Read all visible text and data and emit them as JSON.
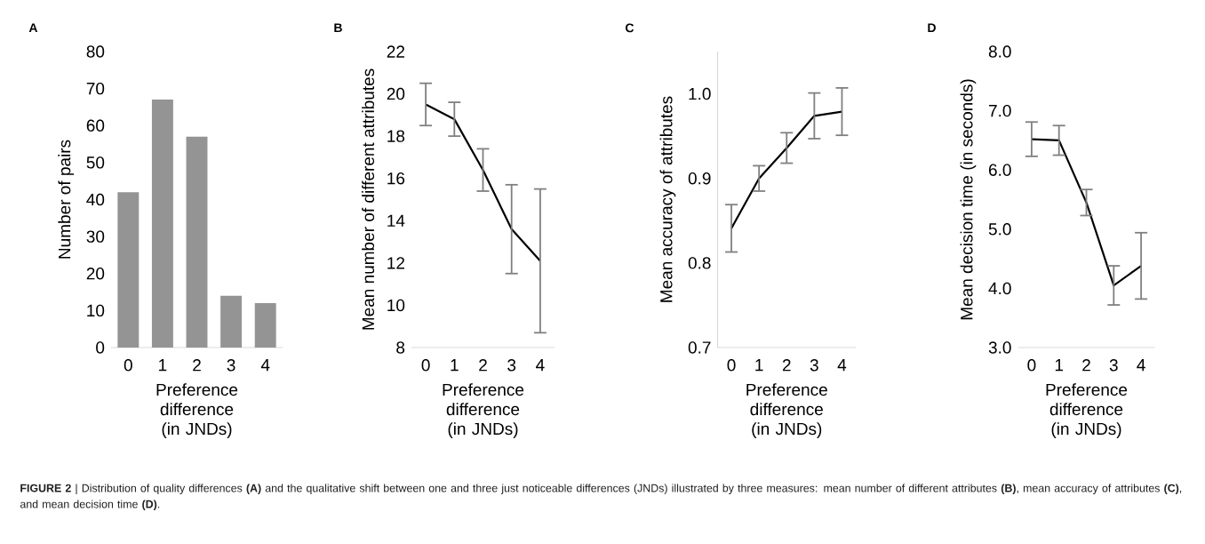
{
  "chart_data": [
    {
      "type": "bar",
      "title": "A",
      "xlabel": "Preference difference (in JNDs)",
      "ylabel": "Number of pairs",
      "categories": [
        "0",
        "1",
        "2",
        "3",
        "4"
      ],
      "values": [
        42,
        67,
        57,
        14,
        12
      ],
      "color": "#949494",
      "ylim": [
        0,
        80
      ],
      "yticks": [
        0,
        10,
        20,
        30,
        40,
        50,
        60,
        70,
        80
      ],
      "annotations": [
        "**FIGURE 2** | Distribution of quality differences **(A)** and the qualitative shift between one and three just noticeable differences (JNDs) illustrated by three measures: mean number of different attributes **(B)**, mean accuracy of attributes **(C)**, and mean decision time **(D)**."
      ]
    },
    {
      "type": "line",
      "title": "B",
      "xlabel": "Preference difference (in JNDs)",
      "ylabel": "Mean number of different attributes",
      "categories": [
        "0",
        "1",
        "2",
        "3",
        "4"
      ],
      "values": [
        19.5,
        18.8,
        16.4,
        13.6,
        12.1
      ],
      "errors": [
        1.0,
        0.8,
        1.0,
        2.1,
        3.4
      ],
      "color": "#000000",
      "ylim": [
        8,
        22
      ],
      "yticks": [
        8,
        10,
        12,
        14,
        16,
        18,
        20,
        22
      ]
    },
    {
      "type": "line",
      "title": "C",
      "xlabel": "Preference difference (in JNDs)",
      "ylabel": "Mean accuracy of attributes",
      "categories": [
        "0",
        "1",
        "2",
        "3",
        "4"
      ],
      "values": [
        0.841,
        0.9,
        0.936,
        0.974,
        0.979
      ],
      "errors": [
        0.028,
        0.015,
        0.018,
        0.027,
        0.028
      ],
      "color": "#000000",
      "ylim": [
        0.7,
        1.05
      ],
      "yticks": [
        {
          "value": 0.7,
          "label": "0.7"
        },
        {
          "value": 0.8,
          "label": "0.8"
        },
        {
          "value": 0.9,
          "label": "0.9"
        },
        {
          "value": 1.0,
          "label": "1.0"
        }
      ]
    },
    {
      "type": "line",
      "title": "D",
      "xlabel": "Preference difference (in JNDs)",
      "ylabel": "Mean decision time (in seconds)",
      "categories": [
        "0",
        "1",
        "2",
        "3",
        "4"
      ],
      "values": [
        6.52,
        6.5,
        5.45,
        4.05,
        4.38
      ],
      "errors": [
        0.29,
        0.25,
        0.22,
        0.33,
        0.56
      ],
      "color": "#000000",
      "ylim": [
        3,
        8
      ],
      "yticks": [
        {
          "value": 3,
          "label": "3.0"
        },
        {
          "value": 4,
          "label": "4.0"
        },
        {
          "value": 5,
          "label": "5.0"
        },
        {
          "value": 6,
          "label": "6.0"
        },
        {
          "value": 7,
          "label": "7.0"
        },
        {
          "value": 8,
          "label": "8.0"
        }
      ]
    }
  ]
}
